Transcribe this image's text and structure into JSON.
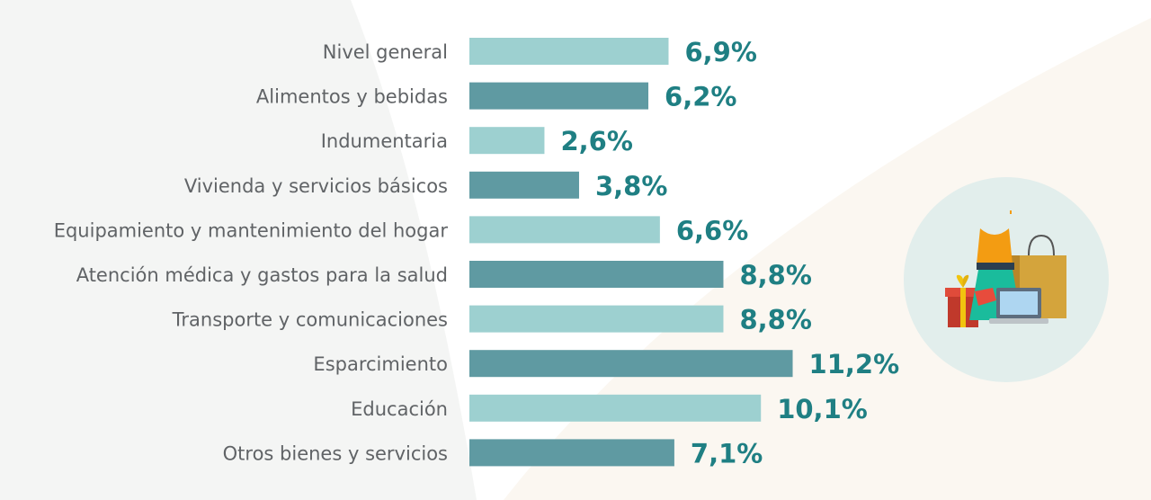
{
  "chart_data": {
    "type": "bar",
    "orientation": "horizontal",
    "categories": [
      "Nivel general",
      "Alimentos y bebidas",
      "Indumentaria",
      "Vivienda y servicios básicos",
      "Equipamiento y mantenimiento del hogar",
      "Atención médica y gastos para la salud",
      "Transporte y comunicaciones",
      "Esparcimiento",
      "Educación",
      "Otros bienes y servicios"
    ],
    "values": [
      6.9,
      6.2,
      2.6,
      3.8,
      6.6,
      8.8,
      8.8,
      11.2,
      10.1,
      7.1
    ],
    "value_labels": [
      "6,9%",
      "6,2%",
      "2,6%",
      "3,8%",
      "6,6%",
      "8,8%",
      "8,8%",
      "11,2%",
      "10,1%",
      "7,1%"
    ],
    "title": "",
    "xlabel": "",
    "ylabel": "",
    "grid": false,
    "colors": {
      "bar_light": "#9dd0d0",
      "bar_dark": "#5f9aa2",
      "value_text": "#1f7f83",
      "category_text": "#606366"
    }
  },
  "illustration": {
    "icon": "shopping-items-icon",
    "circle_color": "#e2eeec"
  }
}
